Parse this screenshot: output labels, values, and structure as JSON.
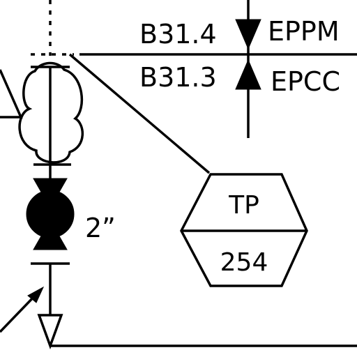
{
  "labels": {
    "upper_code": "B31.4",
    "lower_code": "B31.3",
    "upper_spec": "EPPM",
    "lower_spec": "EPCC",
    "pipe_size": "2”"
  },
  "instrument_tag": {
    "function": "TP",
    "loop_number": "254"
  },
  "colors": {
    "line": "#000000",
    "background": "#ffffff"
  }
}
